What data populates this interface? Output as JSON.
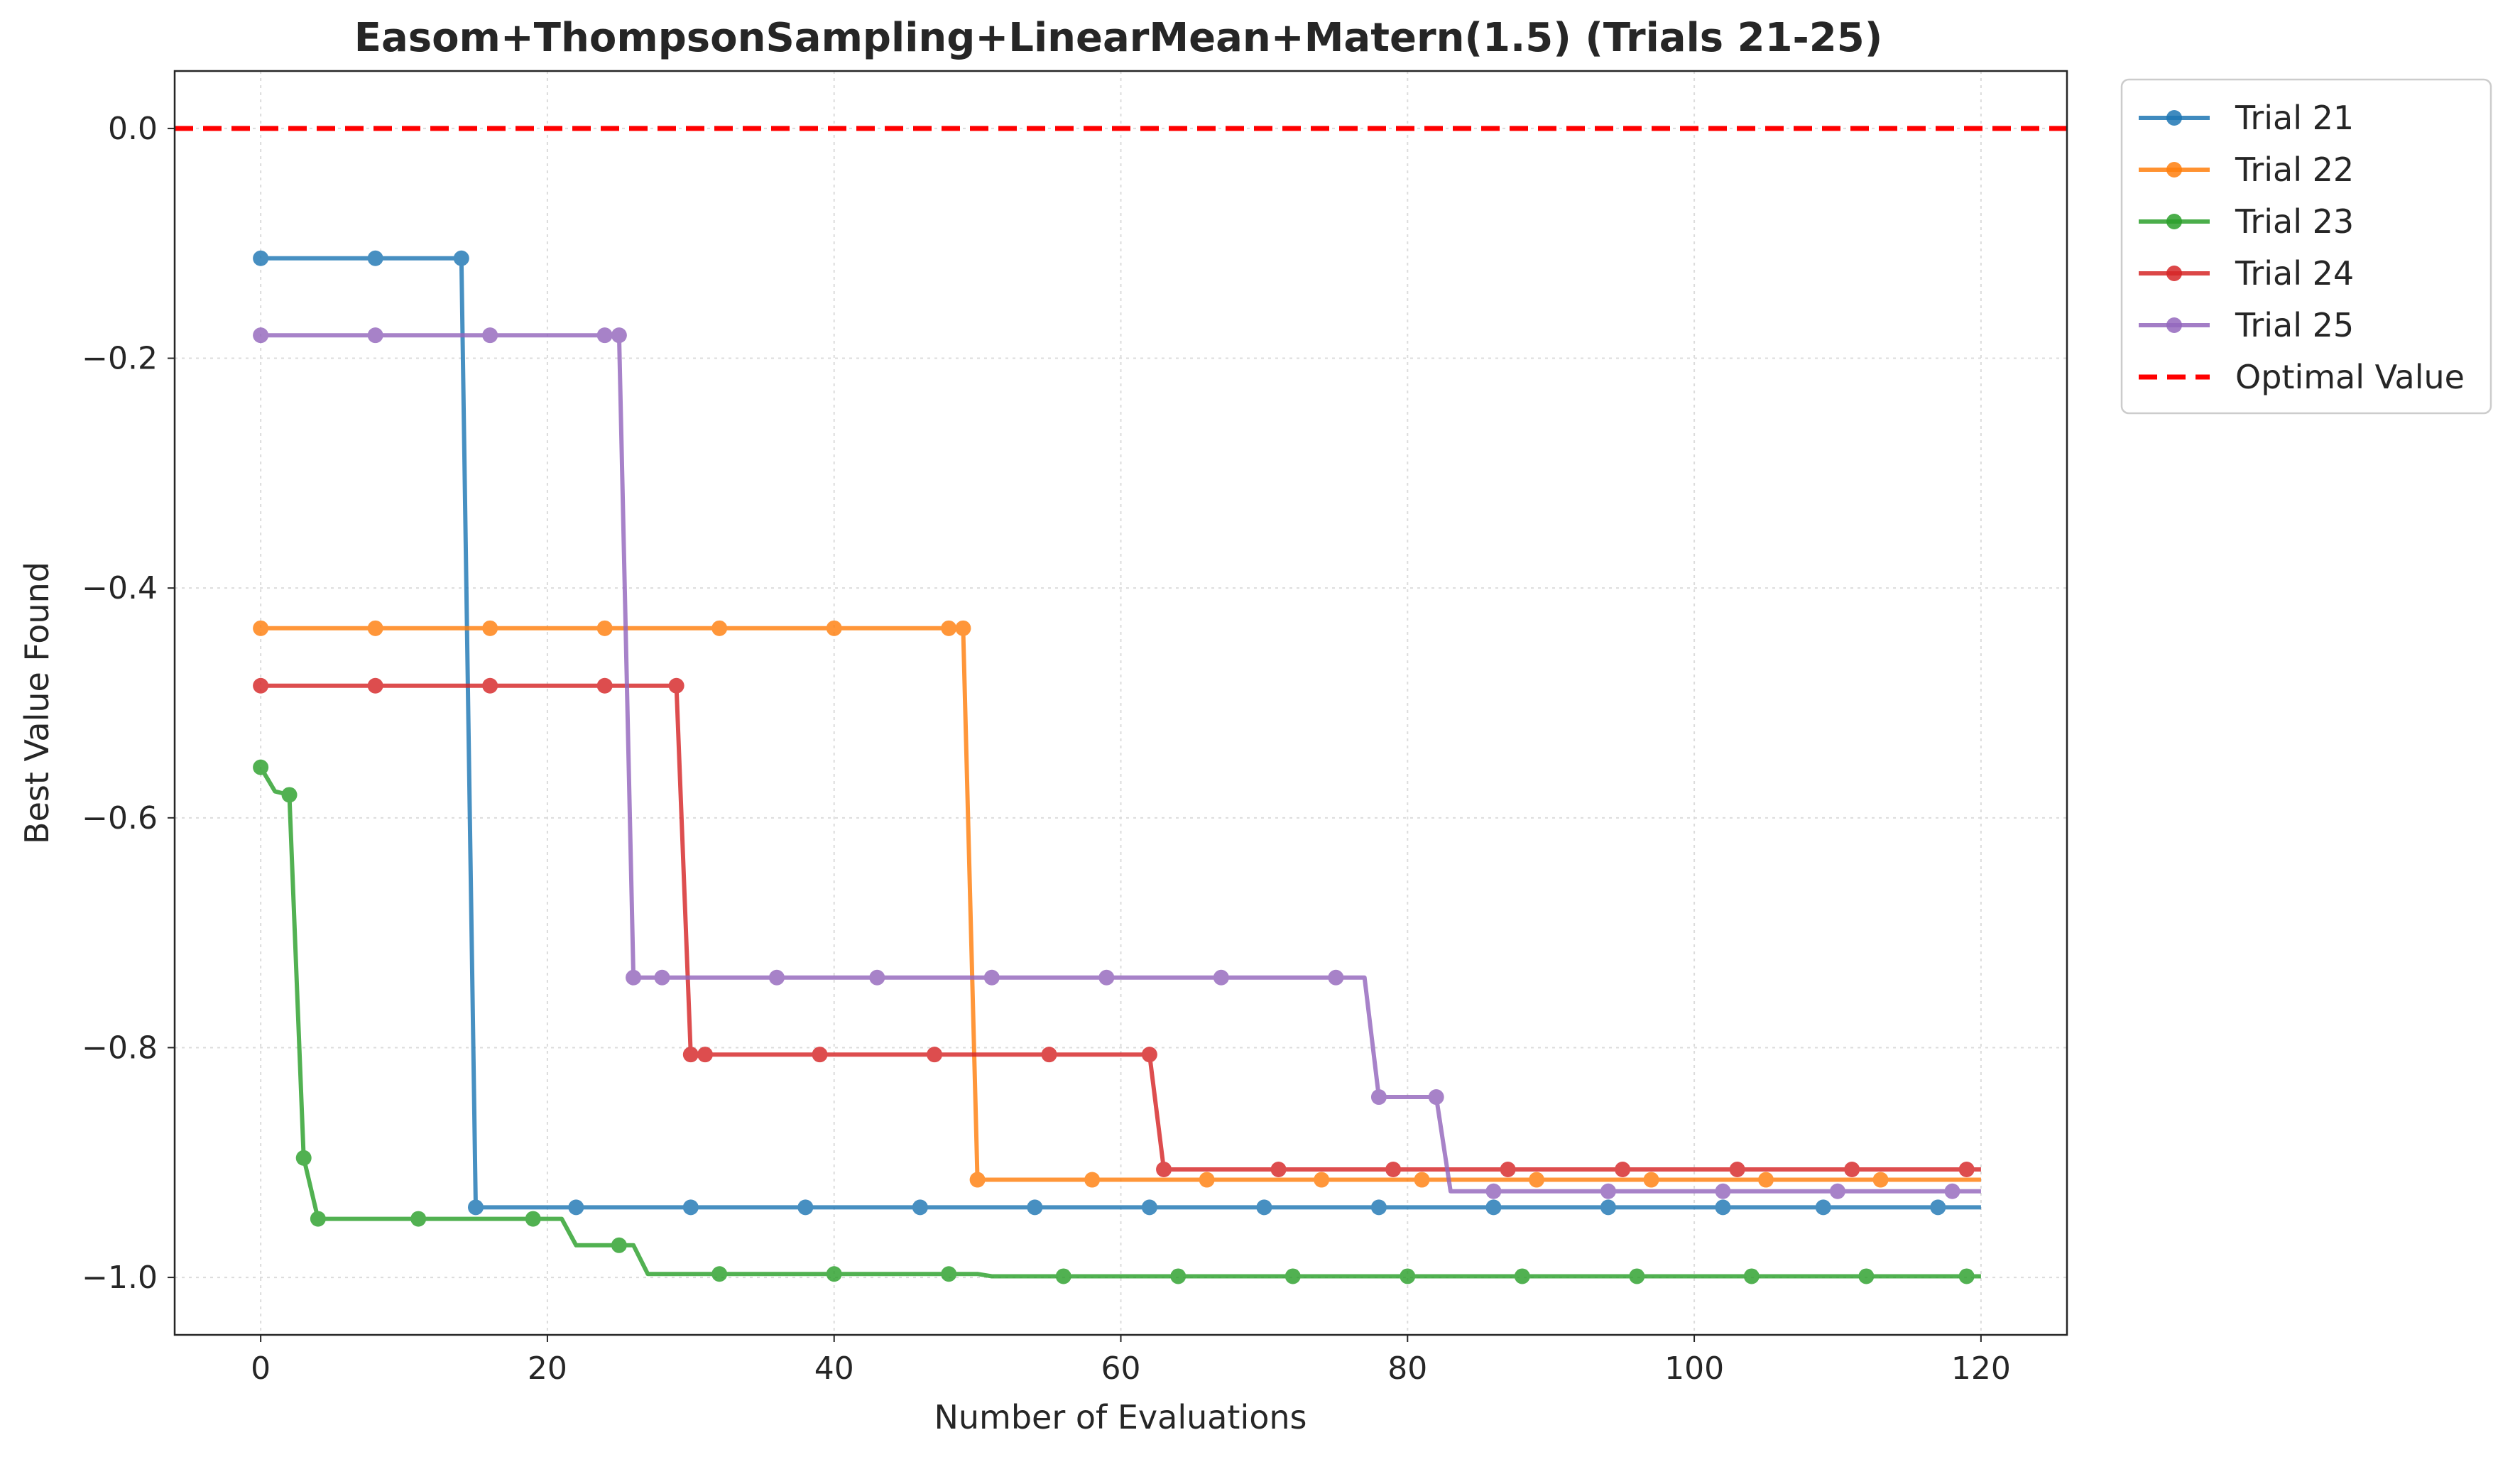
{
  "chart_data": {
    "type": "line",
    "title": "Easom+ThompsonSampling+LinearMean+Matern(1.5) (Trials 21-25)",
    "xlabel": "Number of Evaluations",
    "ylabel": "Best Value Found",
    "xlim": [
      -6,
      126
    ],
    "ylim": [
      -1.05,
      0.05
    ],
    "xticks": [
      0,
      20,
      40,
      60,
      80,
      100,
      120
    ],
    "yticks": [
      0.0,
      -0.2,
      -0.4,
      -0.6,
      -0.8,
      -1.0
    ],
    "xtick_labels": [
      "0",
      "20",
      "40",
      "60",
      "80",
      "100",
      "120"
    ],
    "ytick_labels": [
      "0.0",
      "−0.2",
      "−0.4",
      "−0.6",
      "−0.8",
      "−1.0"
    ],
    "grid": true,
    "legend_position": "outside-top-right",
    "series": [
      {
        "name": "Trial 21",
        "color": "#1f77b4",
        "x": [
          0,
          8,
          14,
          15,
          120
        ],
        "y": [
          -0.113,
          -0.113,
          -0.113,
          -0.939,
          -0.939
        ],
        "markers_x": [
          0,
          8,
          14,
          15,
          22,
          30,
          38,
          46,
          54,
          62,
          70,
          78,
          86,
          94,
          102,
          109,
          117
        ],
        "markers_y": [
          -0.113,
          -0.113,
          -0.113,
          -0.939,
          -0.939,
          -0.939,
          -0.939,
          -0.939,
          -0.939,
          -0.939,
          -0.939,
          -0.939,
          -0.939,
          -0.939,
          -0.939,
          -0.939,
          -0.939
        ]
      },
      {
        "name": "Trial 22",
        "color": "#ff7f0e",
        "x": [
          0,
          48,
          49,
          50,
          120
        ],
        "y": [
          -0.435,
          -0.435,
          -0.435,
          -0.915,
          -0.915
        ],
        "markers_x": [
          0,
          8,
          16,
          24,
          32,
          40,
          48,
          49,
          50,
          58,
          66,
          74,
          81,
          89,
          97,
          105,
          113
        ],
        "markers_y": [
          -0.435,
          -0.435,
          -0.435,
          -0.435,
          -0.435,
          -0.435,
          -0.435,
          -0.435,
          -0.915,
          -0.915,
          -0.915,
          -0.915,
          -0.915,
          -0.915,
          -0.915,
          -0.915,
          -0.915
        ]
      },
      {
        "name": "Trial 23",
        "color": "#2ca02c",
        "x": [
          0,
          1,
          2,
          3,
          4,
          21,
          22,
          26,
          27,
          50,
          51,
          120
        ],
        "y": [
          -0.556,
          -0.577,
          -0.58,
          -0.896,
          -0.949,
          -0.949,
          -0.972,
          -0.972,
          -0.997,
          -0.997,
          -0.999,
          -0.999
        ],
        "markers_x": [
          0,
          2,
          3,
          4,
          11,
          19,
          25,
          32,
          40,
          48,
          56,
          64,
          72,
          80,
          88,
          96,
          104,
          112,
          119
        ],
        "markers_y": [
          -0.556,
          -0.58,
          -0.896,
          -0.949,
          -0.949,
          -0.949,
          -0.972,
          -0.997,
          -0.997,
          -0.997,
          -0.999,
          -0.999,
          -0.999,
          -0.999,
          -0.999,
          -0.999,
          -0.999,
          -0.999,
          -0.999
        ]
      },
      {
        "name": "Trial 24",
        "color": "#d62728",
        "x": [
          0,
          29,
          30,
          62,
          63,
          120
        ],
        "y": [
          -0.485,
          -0.485,
          -0.806,
          -0.806,
          -0.906,
          -0.906
        ],
        "markers_x": [
          0,
          8,
          16,
          24,
          29,
          30,
          31,
          39,
          47,
          55,
          62,
          63,
          71,
          79,
          87,
          95,
          103,
          111,
          119
        ],
        "markers_y": [
          -0.485,
          -0.485,
          -0.485,
          -0.485,
          -0.485,
          -0.806,
          -0.806,
          -0.806,
          -0.806,
          -0.806,
          -0.806,
          -0.906,
          -0.906,
          -0.906,
          -0.906,
          -0.906,
          -0.906,
          -0.906,
          -0.906
        ]
      },
      {
        "name": "Trial 25",
        "color": "#9467bd",
        "x": [
          0,
          25,
          26,
          77,
          78,
          82,
          83,
          120
        ],
        "y": [
          -0.18,
          -0.18,
          -0.739,
          -0.739,
          -0.843,
          -0.843,
          -0.925,
          -0.925
        ],
        "markers_x": [
          0,
          8,
          16,
          24,
          25,
          26,
          28,
          36,
          43,
          51,
          59,
          67,
          75,
          78,
          82,
          86,
          94,
          102,
          110,
          118
        ],
        "markers_y": [
          -0.18,
          -0.18,
          -0.18,
          -0.18,
          -0.18,
          -0.739,
          -0.739,
          -0.739,
          -0.739,
          -0.739,
          -0.739,
          -0.739,
          -0.739,
          -0.843,
          -0.843,
          -0.925,
          -0.925,
          -0.925,
          -0.925,
          -0.925
        ]
      }
    ],
    "reference_line": {
      "name": "Optimal Value",
      "y": 0.0,
      "color": "#ff0000",
      "style": "dashed"
    }
  }
}
